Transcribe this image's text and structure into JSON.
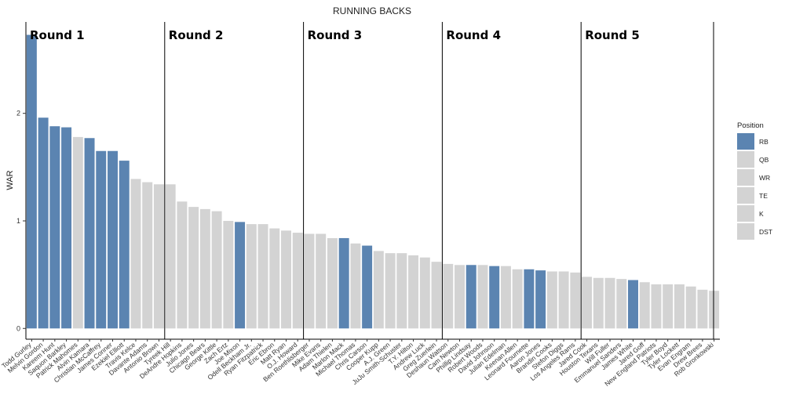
{
  "chart_data": {
    "type": "bar",
    "title": "RUNNING BACKS",
    "xlabel": "",
    "ylabel": "WAR",
    "ylim": [
      -0.1,
      2.85
    ],
    "yticks": [
      0,
      1,
      2
    ],
    "legend": {
      "title": "Position",
      "placement": "right",
      "entries": [
        {
          "label": "RB",
          "color": "#5B84B1"
        },
        {
          "label": "QB",
          "color": "#D3D3D3"
        },
        {
          "label": "WR",
          "color": "#D3D3D3"
        },
        {
          "label": "TE",
          "color": "#D3D3D3"
        },
        {
          "label": "K",
          "color": "#D3D3D3"
        },
        {
          "label": "DST",
          "color": "#D3D3D3"
        }
      ]
    },
    "rounds": [
      {
        "label": "Round 1",
        "start_index": 0
      },
      {
        "label": "Round 2",
        "start_index": 12
      },
      {
        "label": "Round 3",
        "start_index": 24
      },
      {
        "label": "Round 4",
        "start_index": 36
      },
      {
        "label": "Round 5",
        "start_index": 48
      }
    ],
    "bars": [
      {
        "name": "Todd Gurley",
        "value": 2.73,
        "highlight": true
      },
      {
        "name": "Melvin Gordon",
        "value": 1.96,
        "highlight": true
      },
      {
        "name": "Kareem Hunt",
        "value": 1.88,
        "highlight": true
      },
      {
        "name": "Saquon Barkley",
        "value": 1.87,
        "highlight": true
      },
      {
        "name": "Patrick Mahomes",
        "value": 1.78,
        "highlight": false
      },
      {
        "name": "Alvin Kamara",
        "value": 1.77,
        "highlight": true
      },
      {
        "name": "Christian McCaffrey",
        "value": 1.65,
        "highlight": true
      },
      {
        "name": "James Conner",
        "value": 1.65,
        "highlight": true
      },
      {
        "name": "Ezekiel Elliott",
        "value": 1.56,
        "highlight": true
      },
      {
        "name": "Travis Kelce",
        "value": 1.39,
        "highlight": false
      },
      {
        "name": "Davante Adams",
        "value": 1.36,
        "highlight": false
      },
      {
        "name": "Antonio Brown",
        "value": 1.34,
        "highlight": false
      },
      {
        "name": "Tyreek Hill",
        "value": 1.34,
        "highlight": false
      },
      {
        "name": "DeAndre Hopkins",
        "value": 1.18,
        "highlight": false
      },
      {
        "name": "Julio Jones",
        "value": 1.13,
        "highlight": false
      },
      {
        "name": "Chicago Bears",
        "value": 1.11,
        "highlight": false
      },
      {
        "name": "George Kittle",
        "value": 1.09,
        "highlight": false
      },
      {
        "name": "Zach Ertz",
        "value": 1.0,
        "highlight": false
      },
      {
        "name": "Joe Mixon",
        "value": 0.99,
        "highlight": true
      },
      {
        "name": "Odell Beckham Jr.",
        "value": 0.97,
        "highlight": false
      },
      {
        "name": "Ryan Fitzpatrick",
        "value": 0.97,
        "highlight": false
      },
      {
        "name": "Eric Ebron",
        "value": 0.93,
        "highlight": false
      },
      {
        "name": "Matt Ryan",
        "value": 0.91,
        "highlight": false
      },
      {
        "name": "O.J. Howard",
        "value": 0.89,
        "highlight": false
      },
      {
        "name": "Ben Roethlisberger",
        "value": 0.88,
        "highlight": false
      },
      {
        "name": "Mike Evans",
        "value": 0.88,
        "highlight": false
      },
      {
        "name": "Adam Thielen",
        "value": 0.84,
        "highlight": false
      },
      {
        "name": "Marlon Mack",
        "value": 0.84,
        "highlight": true
      },
      {
        "name": "Michael Thomas",
        "value": 0.79,
        "highlight": false
      },
      {
        "name": "Chris Carson",
        "value": 0.77,
        "highlight": true
      },
      {
        "name": "Cooper Kupp",
        "value": 0.72,
        "highlight": false
      },
      {
        "name": "A.J. Green",
        "value": 0.7,
        "highlight": false
      },
      {
        "name": "JuJu Smith-Schuster",
        "value": 0.7,
        "highlight": false
      },
      {
        "name": "T.Y. Hilton",
        "value": 0.68,
        "highlight": false
      },
      {
        "name": "Andrew Luck",
        "value": 0.66,
        "highlight": false
      },
      {
        "name": "Greg Zuerlein",
        "value": 0.62,
        "highlight": false
      },
      {
        "name": "Deshaun Watson",
        "value": 0.6,
        "highlight": false
      },
      {
        "name": "Cam Newton",
        "value": 0.59,
        "highlight": false
      },
      {
        "name": "Phillip Lindsay",
        "value": 0.59,
        "highlight": true
      },
      {
        "name": "Robert Woods",
        "value": 0.59,
        "highlight": false
      },
      {
        "name": "David Johnson",
        "value": 0.58,
        "highlight": true
      },
      {
        "name": "Julian Edelman",
        "value": 0.58,
        "highlight": false
      },
      {
        "name": "Keenan Allen",
        "value": 0.55,
        "highlight": false
      },
      {
        "name": "Leonard Fournette",
        "value": 0.55,
        "highlight": true
      },
      {
        "name": "Aaron Jones",
        "value": 0.54,
        "highlight": true
      },
      {
        "name": "Brandin Cooks",
        "value": 0.53,
        "highlight": false
      },
      {
        "name": "Stefon Diggs",
        "value": 0.53,
        "highlight": false
      },
      {
        "name": "Los Angeles Rams",
        "value": 0.52,
        "highlight": false
      },
      {
        "name": "Jared Cook",
        "value": 0.48,
        "highlight": false
      },
      {
        "name": "Houston Texans",
        "value": 0.47,
        "highlight": false
      },
      {
        "name": "Will Fuller",
        "value": 0.47,
        "highlight": false
      },
      {
        "name": "Emmanuel Sanders",
        "value": 0.46,
        "highlight": false
      },
      {
        "name": "James White",
        "value": 0.45,
        "highlight": true
      },
      {
        "name": "Jared Goff",
        "value": 0.43,
        "highlight": false
      },
      {
        "name": "New England Patriots",
        "value": 0.41,
        "highlight": false
      },
      {
        "name": "Tyler Boyd",
        "value": 0.41,
        "highlight": false
      },
      {
        "name": "Tyler Lockett",
        "value": 0.41,
        "highlight": false
      },
      {
        "name": "Evan Engram",
        "value": 0.39,
        "highlight": false
      },
      {
        "name": "Drew Brees",
        "value": 0.36,
        "highlight": false
      },
      {
        "name": "Rob Gronkowski",
        "value": 0.35,
        "highlight": false
      }
    ],
    "colors": {
      "highlight": "#5B84B1",
      "other": "#D3D3D3"
    },
    "grid": false
  }
}
